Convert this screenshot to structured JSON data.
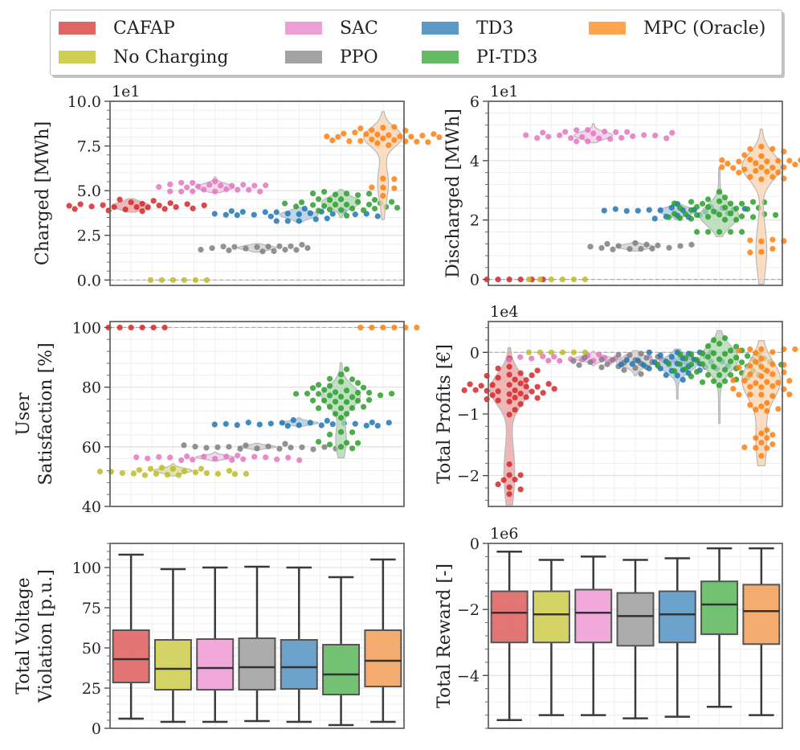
{
  "legend": {
    "items": [
      {
        "label": "CAFAP",
        "color": "#e06666"
      },
      {
        "label": "SAC",
        "color": "#eea0d6"
      },
      {
        "label": "TD3",
        "color": "#5b99c6"
      },
      {
        "label": "MPC (Oracle)",
        "color": "#ffa54f"
      },
      {
        "label": "No Charging",
        "color": "#cfcf55"
      },
      {
        "label": "PPO",
        "color": "#a3a3a3"
      },
      {
        "label": "PI-TD3",
        "color": "#64bb64"
      }
    ]
  },
  "methods": [
    "CAFAP",
    "No Charging",
    "SAC",
    "PPO",
    "TD3",
    "PI-TD3",
    "MPC (Oracle)"
  ],
  "colors": {
    "point": [
      "#d62728",
      "#bcbd22",
      "#e377c2",
      "#7f7f7f",
      "#1f77b4",
      "#2ca02c",
      "#ff7f0e"
    ],
    "violin": [
      "#e8a0a0",
      "#d8d89a",
      "#f3c8e6",
      "#cfcfcf",
      "#a9c7e0",
      "#acd6ac",
      "#f9d1ae"
    ],
    "box": [
      "#e06666",
      "#cfcf55",
      "#eea0d6",
      "#a3a3a3",
      "#5b99c6",
      "#64bb64",
      "#f4a45f"
    ]
  },
  "chart_data": [
    {
      "id": "charged",
      "type": "swarm",
      "ylabel": [
        "Charged [MWh]"
      ],
      "scale_label": "1e1",
      "ylim": [
        -0.3,
        10
      ],
      "yticks": [
        0,
        2.5,
        5,
        7.5,
        10
      ],
      "ytick_labels": [
        "0.0",
        "2.5",
        "5.0",
        "7.5",
        "10.0"
      ],
      "reference_line": 0,
      "groups": [
        {
          "name": "CAFAP",
          "center": 4.15,
          "spread": 0.2,
          "lo": 3.85,
          "hi": 4.5,
          "n": 22
        },
        {
          "name": "No Charging",
          "center": 0,
          "spread": 0,
          "lo": 0,
          "hi": 0,
          "n": 6
        },
        {
          "name": "SAC",
          "center": 5.2,
          "spread": 0.18,
          "lo": 4.95,
          "hi": 5.7,
          "n": 22
        },
        {
          "name": "PPO",
          "center": 1.8,
          "spread": 0.12,
          "lo": 1.6,
          "hi": 2.0,
          "n": 16
        },
        {
          "name": "TD3",
          "center": 3.65,
          "spread": 0.2,
          "lo": 3.3,
          "hi": 4.0,
          "n": 24
        },
        {
          "name": "PI-TD3",
          "center": 4.35,
          "spread": 0.3,
          "lo": 3.6,
          "hi": 4.95,
          "n": 30
        },
        {
          "name": "MPC (Oracle)",
          "center": 8.0,
          "spread": 0.35,
          "lo": 3.8,
          "hi": 9.0,
          "n": 34,
          "tail": [
            4.7,
            6.1
          ]
        }
      ]
    },
    {
      "id": "discharged",
      "type": "swarm",
      "ylabel": [
        "Discharged [MWh]"
      ],
      "scale_label": "1e1",
      "ylim": [
        -0.2,
        6
      ],
      "yticks": [
        0,
        2,
        4,
        6
      ],
      "ytick_labels": [
        "0",
        "2",
        "4",
        "6"
      ],
      "reference_line": 0,
      "groups": [
        {
          "name": "CAFAP",
          "center": 0,
          "spread": 0,
          "lo": 0,
          "hi": 0,
          "n": 6
        },
        {
          "name": "No Charging",
          "center": 0,
          "spread": 0,
          "lo": 0,
          "hi": 0,
          "n": 6
        },
        {
          "name": "SAC",
          "center": 4.85,
          "spread": 0.12,
          "lo": 4.65,
          "hi": 5.2,
          "n": 24
        },
        {
          "name": "PPO",
          "center": 1.1,
          "spread": 0.07,
          "lo": 0.98,
          "hi": 1.25,
          "n": 14
        },
        {
          "name": "TD3",
          "center": 2.3,
          "spread": 0.12,
          "lo": 2.05,
          "hi": 2.55,
          "n": 22
        },
        {
          "name": "PI-TD3",
          "center": 2.15,
          "spread": 0.35,
          "lo": 1.6,
          "hi": 3.6,
          "n": 40
        },
        {
          "name": "MPC (Oracle)",
          "center": 3.8,
          "spread": 0.3,
          "lo": 0.2,
          "hi": 4.7,
          "n": 38,
          "tail": [
            0.4,
            1.6
          ]
        }
      ]
    },
    {
      "id": "satisfaction",
      "type": "swarm",
      "ylabel": [
        "User",
        "Satisfaction [%]"
      ],
      "scale_label": "",
      "ylim": [
        40,
        102
      ],
      "yticks": [
        40,
        60,
        80,
        100
      ],
      "ytick_labels": [
        "40",
        "60",
        "80",
        "100"
      ],
      "reference_line": 100,
      "groups": [
        {
          "name": "CAFAP",
          "center": 100,
          "spread": 0,
          "lo": 100,
          "hi": 100,
          "n": 6
        },
        {
          "name": "No Charging",
          "center": 52,
          "spread": 0.8,
          "lo": 50.5,
          "hi": 54,
          "n": 20
        },
        {
          "name": "SAC",
          "center": 56.5,
          "spread": 0.6,
          "lo": 55.5,
          "hi": 58,
          "n": 18
        },
        {
          "name": "PPO",
          "center": 60,
          "spread": 0.5,
          "lo": 59,
          "hi": 61,
          "n": 16
        },
        {
          "name": "TD3",
          "center": 68,
          "spread": 0.6,
          "lo": 67,
          "hi": 69.5,
          "n": 20
        },
        {
          "name": "PI-TD3",
          "center": 77,
          "spread": 3.5,
          "lo": 58.5,
          "hi": 86,
          "n": 46,
          "tail": [
            59,
            66
          ]
        },
        {
          "name": "MPC (Oracle)",
          "center": 100,
          "spread": 0,
          "lo": 100,
          "hi": 100,
          "n": 6
        }
      ]
    },
    {
      "id": "profits",
      "type": "swarm",
      "ylabel": [
        "Total Profits [€]"
      ],
      "scale_label": "1e4",
      "ylim": [
        -2.5,
        0.5
      ],
      "yticks": [
        -2,
        -1,
        0
      ],
      "ytick_labels": [
        "−2",
        "−1",
        "0"
      ],
      "reference_line": 0,
      "groups": [
        {
          "name": "CAFAP",
          "center": -0.6,
          "spread": 0.25,
          "lo": -2.3,
          "hi": -0.1,
          "n": 48,
          "tail": [
            -1.6,
            -2.3
          ]
        },
        {
          "name": "No Charging",
          "center": 0,
          "spread": 0,
          "lo": 0,
          "hi": 0,
          "n": 6
        },
        {
          "name": "SAC",
          "center": -0.1,
          "spread": 0.04,
          "lo": -0.2,
          "hi": 0,
          "n": 22
        },
        {
          "name": "PPO",
          "center": -0.15,
          "spread": 0.08,
          "lo": -0.35,
          "hi": 0,
          "n": 30
        },
        {
          "name": "TD3",
          "center": -0.2,
          "spread": 0.12,
          "lo": -0.7,
          "hi": 0,
          "n": 34
        },
        {
          "name": "PI-TD3",
          "center": -0.1,
          "spread": 0.2,
          "lo": -1.05,
          "hi": 0.25,
          "n": 52
        },
        {
          "name": "MPC (Oracle)",
          "center": -0.45,
          "spread": 0.3,
          "lo": -1.7,
          "hi": 0.05,
          "n": 52,
          "tail": [
            -1.2,
            -1.7
          ]
        }
      ]
    },
    {
      "id": "voltage",
      "type": "box",
      "ylabel": [
        "Total Voltage",
        "Violation [p.u.]"
      ],
      "scale_label": "",
      "ylim": [
        0,
        115
      ],
      "yticks": [
        0,
        25,
        50,
        75,
        100
      ],
      "ytick_labels": [
        "0",
        "25",
        "50",
        "75",
        "100"
      ],
      "boxes": [
        {
          "name": "CAFAP",
          "min": 6,
          "q1": 28.5,
          "median": 43,
          "q3": 61,
          "max": 108
        },
        {
          "name": "No Charging",
          "min": 4,
          "q1": 24,
          "median": 37,
          "q3": 55,
          "max": 99
        },
        {
          "name": "SAC",
          "min": 4,
          "q1": 24,
          "median": 37.5,
          "q3": 55.5,
          "max": 100
        },
        {
          "name": "PPO",
          "min": 4.5,
          "q1": 24,
          "median": 38,
          "q3": 56,
          "max": 100.5
        },
        {
          "name": "TD3",
          "min": 4,
          "q1": 24.5,
          "median": 38,
          "q3": 55,
          "max": 100
        },
        {
          "name": "PI-TD3",
          "min": 2,
          "q1": 21,
          "median": 33.5,
          "q3": 52,
          "max": 94
        },
        {
          "name": "MPC (Oracle)",
          "min": 4,
          "q1": 26,
          "median": 42,
          "q3": 61,
          "max": 105
        }
      ]
    },
    {
      "id": "reward",
      "type": "box",
      "ylabel": [
        "Total Reward [-]"
      ],
      "scale_label": "1e6",
      "ylim": [
        -5.6,
        0
      ],
      "yticks": [
        -4,
        -2,
        0
      ],
      "ytick_labels": [
        "−4",
        "−2",
        "0"
      ],
      "boxes": [
        {
          "name": "CAFAP",
          "min": -5.35,
          "q1": -3.0,
          "median": -2.1,
          "q3": -1.45,
          "max": -0.25
        },
        {
          "name": "No Charging",
          "min": -5.2,
          "q1": -3.0,
          "median": -2.15,
          "q3": -1.45,
          "max": -0.5
        },
        {
          "name": "SAC",
          "min": -5.2,
          "q1": -3.0,
          "median": -2.1,
          "q3": -1.4,
          "max": -0.4
        },
        {
          "name": "PPO",
          "min": -5.3,
          "q1": -3.1,
          "median": -2.2,
          "q3": -1.5,
          "max": -0.5
        },
        {
          "name": "TD3",
          "min": -5.25,
          "q1": -3.0,
          "median": -2.15,
          "q3": -1.45,
          "max": -0.45
        },
        {
          "name": "PI-TD3",
          "min": -4.95,
          "q1": -2.75,
          "median": -1.85,
          "q3": -1.15,
          "max": -0.15
        },
        {
          "name": "MPC (Oracle)",
          "min": -5.2,
          "q1": -3.05,
          "median": -2.05,
          "q3": -1.25,
          "max": -0.15
        }
      ]
    }
  ]
}
